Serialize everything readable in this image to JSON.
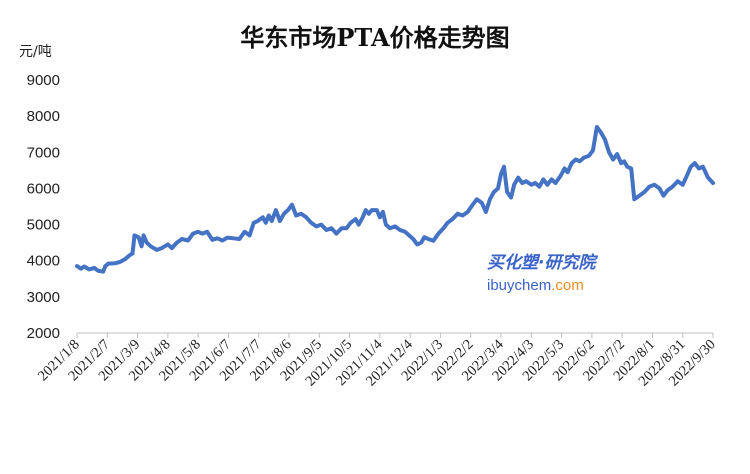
{
  "chart_data": {
    "type": "line",
    "title": "华东市场PTA价格走势图",
    "ylabel": "元/吨",
    "ylim": [
      2000,
      9000
    ],
    "yticks": [
      2000,
      3000,
      4000,
      5000,
      6000,
      7000,
      8000,
      9000
    ],
    "xlabels": [
      "2021/1/8",
      "2021/2/7",
      "2021/3/9",
      "2021/4/8",
      "2021/5/8",
      "2021/6/7",
      "2021/7/7",
      "2021/8/6",
      "2021/9/5",
      "2021/10/5",
      "2021/11/4",
      "2021/12/4",
      "2022/1/3",
      "2022/2/2",
      "2022/3/4",
      "2022/4/3",
      "2022/5/3",
      "2022/6/2",
      "2022/7/2",
      "2022/8/1",
      "2022/8/31",
      "2022/9/30"
    ],
    "series": [
      {
        "color": "#4472c4",
        "points": [
          [
            "2021-01-08",
            3850
          ],
          [
            "2021-01-12",
            3780
          ],
          [
            "2021-01-15",
            3840
          ],
          [
            "2021-01-20",
            3760
          ],
          [
            "2021-01-25",
            3800
          ],
          [
            "2021-01-29",
            3720
          ],
          [
            "2021-02-03",
            3700
          ],
          [
            "2021-02-05",
            3850
          ],
          [
            "2021-02-08",
            3920
          ],
          [
            "2021-02-15",
            3930
          ],
          [
            "2021-02-20",
            3970
          ],
          [
            "2021-02-25",
            4050
          ],
          [
            "2021-03-01",
            4150
          ],
          [
            "2021-03-04",
            4200
          ],
          [
            "2021-03-06",
            4700
          ],
          [
            "2021-03-10",
            4650
          ],
          [
            "2021-03-13",
            4400
          ],
          [
            "2021-03-15",
            4700
          ],
          [
            "2021-03-18",
            4500
          ],
          [
            "2021-03-22",
            4400
          ],
          [
            "2021-03-28",
            4300
          ],
          [
            "2021-04-02",
            4350
          ],
          [
            "2021-04-08",
            4450
          ],
          [
            "2021-04-12",
            4350
          ],
          [
            "2021-04-17",
            4500
          ],
          [
            "2021-04-22",
            4600
          ],
          [
            "2021-04-28",
            4560
          ],
          [
            "2021-05-03",
            4750
          ],
          [
            "2021-05-08",
            4800
          ],
          [
            "2021-05-12",
            4750
          ],
          [
            "2021-05-17",
            4800
          ],
          [
            "2021-05-22",
            4580
          ],
          [
            "2021-05-27",
            4620
          ],
          [
            "2021-06-01",
            4560
          ],
          [
            "2021-06-06",
            4640
          ],
          [
            "2021-06-12",
            4620
          ],
          [
            "2021-06-18",
            4600
          ],
          [
            "2021-06-23",
            4800
          ],
          [
            "2021-06-28",
            4700
          ],
          [
            "2021-07-02",
            5050
          ],
          [
            "2021-07-06",
            5100
          ],
          [
            "2021-07-11",
            5200
          ],
          [
            "2021-07-14",
            5050
          ],
          [
            "2021-07-17",
            5250
          ],
          [
            "2021-07-20",
            5100
          ],
          [
            "2021-07-24",
            5400
          ],
          [
            "2021-07-28",
            5100
          ],
          [
            "2021-08-01",
            5300
          ],
          [
            "2021-08-05",
            5400
          ],
          [
            "2021-08-09",
            5550
          ],
          [
            "2021-08-13",
            5250
          ],
          [
            "2021-08-18",
            5300
          ],
          [
            "2021-08-23",
            5200
          ],
          [
            "2021-08-28",
            5050
          ],
          [
            "2021-09-02",
            4950
          ],
          [
            "2021-09-07",
            5000
          ],
          [
            "2021-09-12",
            4850
          ],
          [
            "2021-09-17",
            4900
          ],
          [
            "2021-09-22",
            4750
          ],
          [
            "2021-09-27",
            4900
          ],
          [
            "2021-10-02",
            4900
          ],
          [
            "2021-10-06",
            5050
          ],
          [
            "2021-10-11",
            5150
          ],
          [
            "2021-10-14",
            5000
          ],
          [
            "2021-10-18",
            5200
          ],
          [
            "2021-10-21",
            5400
          ],
          [
            "2021-10-24",
            5300
          ],
          [
            "2021-10-27",
            5400
          ],
          [
            "2021-11-01",
            5400
          ],
          [
            "2021-11-04",
            5200
          ],
          [
            "2021-11-07",
            5350
          ],
          [
            "2021-11-10",
            5000
          ],
          [
            "2021-11-14",
            4900
          ],
          [
            "2021-11-19",
            4950
          ],
          [
            "2021-11-24",
            4850
          ],
          [
            "2021-11-29",
            4800
          ],
          [
            "2021-12-03",
            4700
          ],
          [
            "2021-12-07",
            4600
          ],
          [
            "2021-12-11",
            4450
          ],
          [
            "2021-12-15",
            4500
          ],
          [
            "2021-12-18",
            4650
          ],
          [
            "2021-12-22",
            4600
          ],
          [
            "2021-12-27",
            4550
          ],
          [
            "2022-01-01",
            4750
          ],
          [
            "2022-01-06",
            4900
          ],
          [
            "2022-01-10",
            5050
          ],
          [
            "2022-01-15",
            5150
          ],
          [
            "2022-01-20",
            5300
          ],
          [
            "2022-01-25",
            5250
          ],
          [
            "2022-01-30",
            5350
          ],
          [
            "2022-02-04",
            5550
          ],
          [
            "2022-02-08",
            5700
          ],
          [
            "2022-02-13",
            5600
          ],
          [
            "2022-02-17",
            5350
          ],
          [
            "2022-02-21",
            5700
          ],
          [
            "2022-02-25",
            5900
          ],
          [
            "2022-03-01",
            6000
          ],
          [
            "2022-03-04",
            6400
          ],
          [
            "2022-03-07",
            6600
          ],
          [
            "2022-03-10",
            5900
          ],
          [
            "2022-03-14",
            5750
          ],
          [
            "2022-03-17",
            6100
          ],
          [
            "2022-03-21",
            6300
          ],
          [
            "2022-03-25",
            6150
          ],
          [
            "2022-03-29",
            6200
          ],
          [
            "2022-04-03",
            6100
          ],
          [
            "2022-04-07",
            6150
          ],
          [
            "2022-04-11",
            6050
          ],
          [
            "2022-04-15",
            6250
          ],
          [
            "2022-04-19",
            6100
          ],
          [
            "2022-04-23",
            6250
          ],
          [
            "2022-04-27",
            6150
          ],
          [
            "2022-05-02",
            6350
          ],
          [
            "2022-05-06",
            6550
          ],
          [
            "2022-05-09",
            6450
          ],
          [
            "2022-05-13",
            6700
          ],
          [
            "2022-05-17",
            6800
          ],
          [
            "2022-05-21",
            6750
          ],
          [
            "2022-05-25",
            6850
          ],
          [
            "2022-05-30",
            6900
          ],
          [
            "2022-06-03",
            7050
          ],
          [
            "2022-06-07",
            7700
          ],
          [
            "2022-06-11",
            7550
          ],
          [
            "2022-06-15",
            7350
          ],
          [
            "2022-06-19",
            7000
          ],
          [
            "2022-06-23",
            6800
          ],
          [
            "2022-06-27",
            6950
          ],
          [
            "2022-07-01",
            6700
          ],
          [
            "2022-07-04",
            6750
          ],
          [
            "2022-07-07",
            6600
          ],
          [
            "2022-07-11",
            6550
          ],
          [
            "2022-07-14",
            5700
          ],
          [
            "2022-07-19",
            5800
          ],
          [
            "2022-07-24",
            5900
          ],
          [
            "2022-07-29",
            6050
          ],
          [
            "2022-08-03",
            6100
          ],
          [
            "2022-08-08",
            6000
          ],
          [
            "2022-08-12",
            5800
          ],
          [
            "2022-08-16",
            5950
          ],
          [
            "2022-08-21",
            6050
          ],
          [
            "2022-08-26",
            6200
          ],
          [
            "2022-08-31",
            6100
          ],
          [
            "2022-09-04",
            6350
          ],
          [
            "2022-09-08",
            6600
          ],
          [
            "2022-09-12",
            6700
          ],
          [
            "2022-09-16",
            6550
          ],
          [
            "2022-09-20",
            6600
          ],
          [
            "2022-09-25",
            6300
          ],
          [
            "2022-09-30",
            6150
          ]
        ]
      }
    ],
    "grid": false,
    "legend": "none"
  },
  "watermark": {
    "cn_text": "买化塑·研究院",
    "en_prefix": "ibuychem",
    "en_suffix": ".com",
    "color": "#3a63c9",
    "accent": "#f08a26"
  }
}
